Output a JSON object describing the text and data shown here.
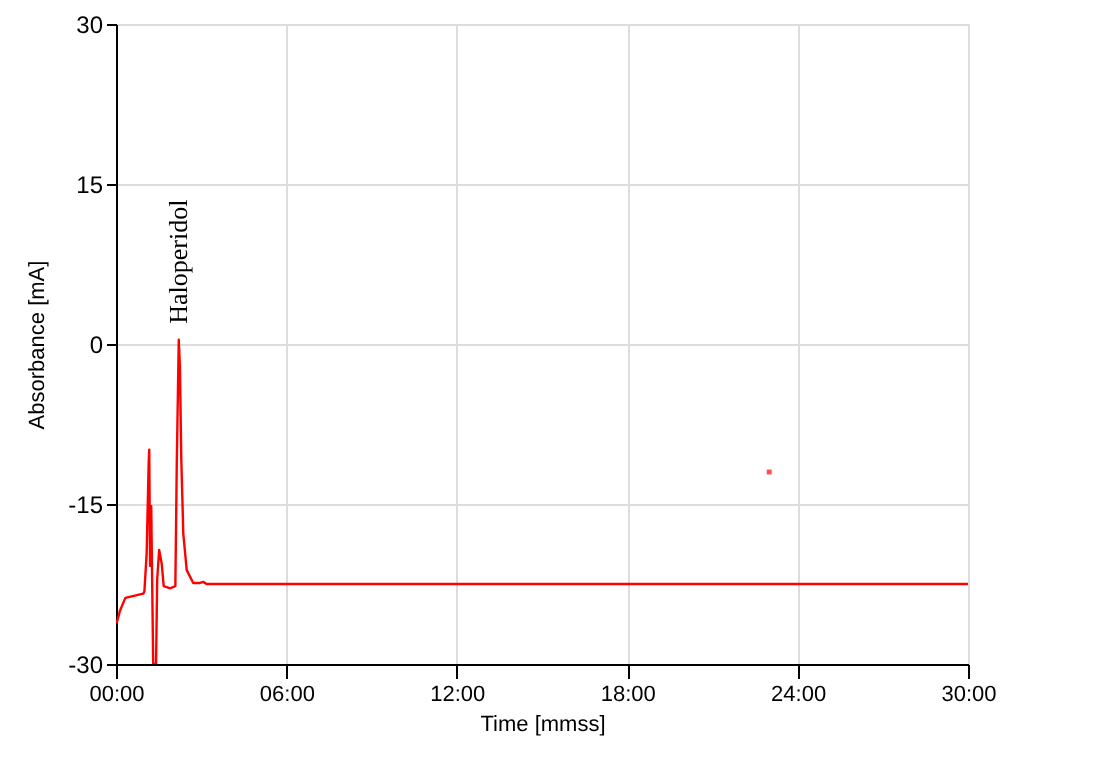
{
  "chart_data": {
    "type": "line",
    "xlabel": "Time [mmss]",
    "ylabel": "Absorbance [mA]",
    "xlim": [
      0,
      30
    ],
    "ylim": [
      -30,
      30
    ],
    "xticks": [
      {
        "value": 0,
        "label": "00:00"
      },
      {
        "value": 6,
        "label": "06:00"
      },
      {
        "value": 12,
        "label": "12:00"
      },
      {
        "value": 18,
        "label": "18:00"
      },
      {
        "value": 24,
        "label": "24:00"
      },
      {
        "value": 30,
        "label": "30:00"
      }
    ],
    "yticks": [
      -30,
      -15,
      0,
      15,
      30
    ],
    "grid": true,
    "annotations": [
      {
        "text": "Haloperidol",
        "x": 2.21,
        "y": 0.4
      }
    ],
    "series": [
      {
        "color": "#ff0000",
        "x": [
          0.02,
          0.14,
          0.33,
          0.96,
          1.0,
          1.08,
          1.15,
          1.17,
          1.2,
          1.24,
          1.31,
          1.41,
          1.45,
          1.52,
          1.61,
          1.68,
          1.91,
          2.09,
          2.14,
          2.21,
          2.25,
          2.3,
          2.37,
          2.49,
          2.72,
          2.96,
          3.07,
          3.19,
          30
        ],
        "values": [
          -26.2,
          -25,
          -23.8,
          -23.4,
          -23.2,
          -19.6,
          -11.2,
          -9.9,
          -20.8,
          -15.2,
          -30,
          -30,
          -22.1,
          -19.3,
          -20.6,
          -22.7,
          -22.9,
          -22.7,
          -11.2,
          0.4,
          -2.1,
          -10.9,
          -17.8,
          -21.2,
          -22.4,
          -22.4,
          -22.3,
          -22.5,
          -22.5
        ]
      },
      {
        "color": "#ff0000",
        "type": "scatter",
        "marker": "square",
        "x": [
          23.0
        ],
        "values": [
          -12.0
        ]
      }
    ]
  }
}
